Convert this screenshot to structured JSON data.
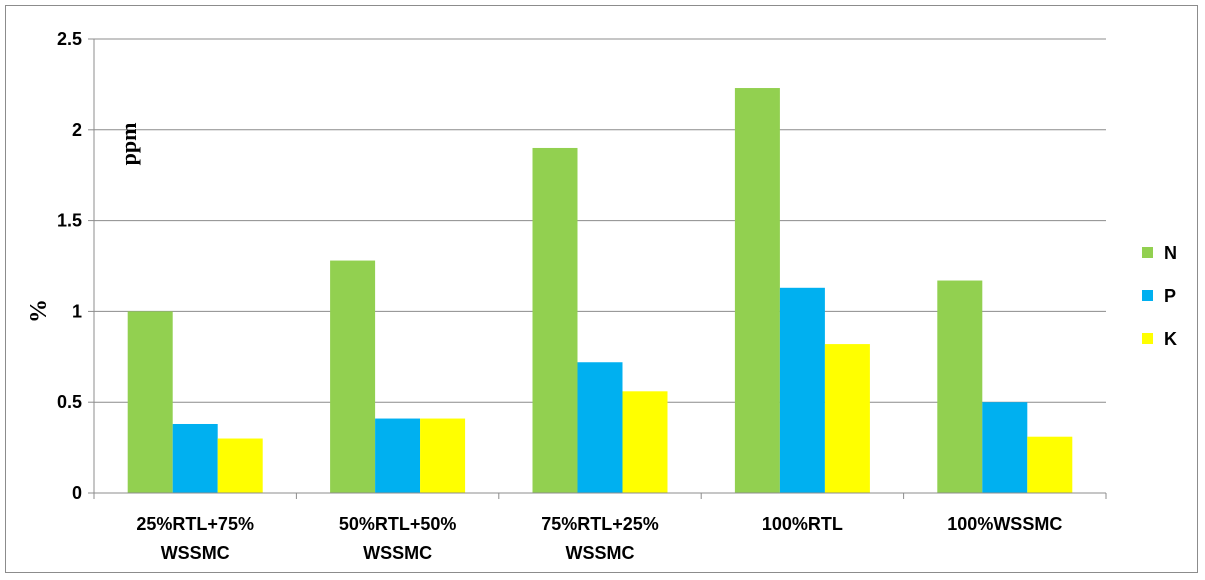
{
  "chart_data": {
    "type": "bar",
    "title": "",
    "xlabel": "",
    "ylabel": "%",
    "annotation": "ppm",
    "ylim": [
      0,
      2.5
    ],
    "yticks": [
      0,
      0.5,
      1,
      1.5,
      2,
      2.5
    ],
    "ytick_labels": [
      "0",
      "0.5",
      "1",
      "1.5",
      "2",
      "2.5"
    ],
    "grid": "horizontal",
    "legend_position": "right",
    "categories": [
      [
        "25%RTL+75%",
        "WSSMC"
      ],
      [
        "50%RTL+50%",
        "WSSMC"
      ],
      [
        "75%RTL+25%",
        "WSSMC"
      ],
      [
        "100%RTL"
      ],
      [
        "100%WSSMC"
      ]
    ],
    "series": [
      {
        "name": "N",
        "color": "#92d050",
        "values": [
          1.0,
          1.28,
          1.9,
          2.23,
          1.17
        ]
      },
      {
        "name": "P",
        "color": "#00b0f0",
        "values": [
          0.38,
          0.41,
          0.72,
          1.13,
          0.5
        ]
      },
      {
        "name": "K",
        "color": "#ffff00",
        "values": [
          0.3,
          0.41,
          0.56,
          0.82,
          0.31
        ]
      }
    ]
  }
}
